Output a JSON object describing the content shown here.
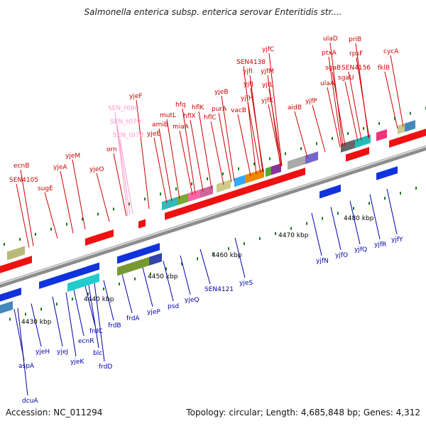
{
  "title": "Salmonella enterica subsp. enterica serovar Enteritidis str....",
  "footer": {
    "accession": "Accession: NC_011294",
    "summary": "Topology: circular; Length: 4,685,848 bp; Genes: 4,312"
  },
  "colors": {
    "forward_label": "#cc0000",
    "reverse_label": "#0000aa",
    "rna_label": "#ff99cc",
    "forward_gene": "#ee1111",
    "reverse_gene": "#1133dd",
    "backbone": "#999999",
    "tick": "#1a7a1a"
  },
  "scale": [
    {
      "label": "4430 kbp"
    },
    {
      "label": "4440 kbp"
    },
    {
      "label": "4450 kbp"
    },
    {
      "label": "4460 kbp"
    },
    {
      "label": "4470 kbp"
    },
    {
      "label": "4480 kbp"
    }
  ],
  "forward_labels": [
    {
      "name": "ecnB"
    },
    {
      "name": "SEN4105"
    },
    {
      "name": "sugE"
    },
    {
      "name": "yjeA"
    },
    {
      "name": "yjeM"
    },
    {
      "name": "yjeO"
    },
    {
      "name": "orn"
    },
    {
      "name": "SEN_t080"
    },
    {
      "name": "SEN_t079"
    },
    {
      "name": "SEN_t078"
    },
    {
      "name": "yjeF"
    },
    {
      "name": "yjeE"
    },
    {
      "name": "amiB"
    },
    {
      "name": "mutL"
    },
    {
      "name": "miaA"
    },
    {
      "name": "hfq"
    },
    {
      "name": "hflX"
    },
    {
      "name": "hflK"
    },
    {
      "name": "hflC"
    },
    {
      "name": "purA"
    },
    {
      "name": "yjeB"
    },
    {
      "name": "vacB"
    },
    {
      "name": "SEN4138"
    },
    {
      "name": "yjfC"
    },
    {
      "name": "yjfI"
    },
    {
      "name": "yjfM"
    },
    {
      "name": "yjfJ"
    },
    {
      "name": "yjfL"
    },
    {
      "name": "yjfH"
    },
    {
      "name": "yjfK"
    },
    {
      "name": "aidB"
    },
    {
      "name": "yjfP"
    },
    {
      "name": "ulaD"
    },
    {
      "name": "ptxA"
    },
    {
      "name": "sgaB"
    },
    {
      "name": "ulaA"
    },
    {
      "name": "sgaU"
    },
    {
      "name": "SEN4156"
    },
    {
      "name": "priB"
    },
    {
      "name": "rpsF"
    },
    {
      "name": "cycA"
    },
    {
      "name": "fklB"
    }
  ],
  "reverse_labels": [
    {
      "name": "dcuA"
    },
    {
      "name": "aspA"
    },
    {
      "name": "yjeH"
    },
    {
      "name": "yjeJ"
    },
    {
      "name": "yjeK"
    },
    {
      "name": "ecnR"
    },
    {
      "name": "frdC"
    },
    {
      "name": "blc"
    },
    {
      "name": "frdD"
    },
    {
      "name": "frdB"
    },
    {
      "name": "frdA"
    },
    {
      "name": "yjeP"
    },
    {
      "name": "psd"
    },
    {
      "name": "yjeQ"
    },
    {
      "name": "SEN4121"
    },
    {
      "name": "yjeS"
    },
    {
      "name": "yjfN"
    },
    {
      "name": "yjfO"
    },
    {
      "name": "yjfQ"
    },
    {
      "name": "yjfR"
    },
    {
      "name": "yjfY"
    }
  ]
}
